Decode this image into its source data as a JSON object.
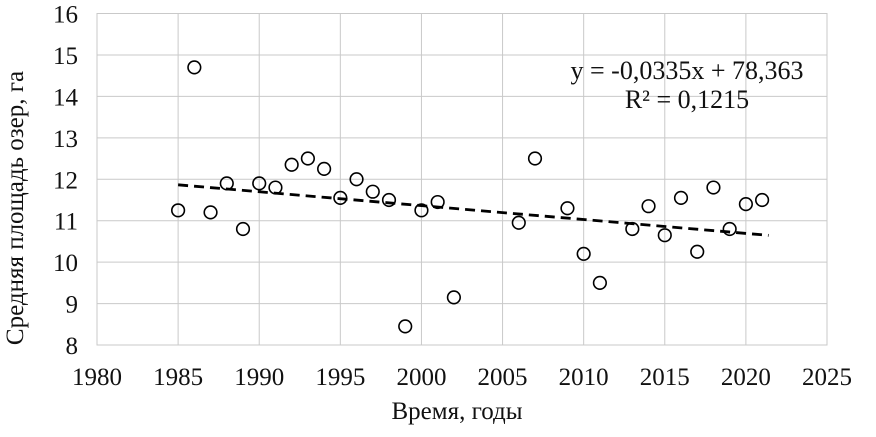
{
  "chart_data": {
    "type": "scatter",
    "title": "",
    "xlabel": "Время, годы",
    "ylabel": "Средняя площадь озер, га",
    "xlim": [
      1980,
      2025
    ],
    "ylim": [
      8,
      16
    ],
    "x_ticks": [
      1980,
      1985,
      1990,
      1995,
      2000,
      2005,
      2010,
      2015,
      2020,
      2025
    ],
    "y_ticks": [
      8,
      9,
      10,
      11,
      12,
      13,
      14,
      15,
      16
    ],
    "grid": true,
    "legend": false,
    "marker": "open-circle",
    "series": [
      {
        "name": "Средняя площадь озер, га",
        "x": [
          1985,
          1986,
          1987,
          1988,
          1989,
          1990,
          1991,
          1992,
          1993,
          1994,
          1995,
          1996,
          1997,
          1998,
          1999,
          2000,
          2001,
          2002,
          2006,
          2007,
          2009,
          2010,
          2011,
          2013,
          2014,
          2015,
          2016,
          2017,
          2018,
          2019,
          2020,
          2021
        ],
        "y": [
          11.25,
          14.7,
          11.2,
          11.9,
          10.8,
          11.9,
          11.8,
          12.35,
          12.5,
          12.25,
          11.55,
          12.0,
          11.7,
          11.5,
          8.45,
          11.25,
          11.45,
          9.15,
          10.95,
          12.5,
          11.3,
          10.2,
          9.5,
          10.8,
          11.35,
          10.65,
          11.55,
          10.25,
          11.8,
          10.8,
          11.4,
          11.5
        ]
      }
    ],
    "trendline": {
      "type": "linear",
      "style": "dashed",
      "slope": -0.0335,
      "intercept": 78.363,
      "x_start": 1985,
      "x_end": 2021.4
    },
    "annotations": {
      "equation": "y = -0,0335x + 78,363",
      "r_squared": "R² = 0,1215"
    },
    "colors": {
      "marker": "#000000",
      "trend": "#000000",
      "grid": "#c9c9c9",
      "text": "#111111",
      "background": "#ffffff"
    }
  }
}
